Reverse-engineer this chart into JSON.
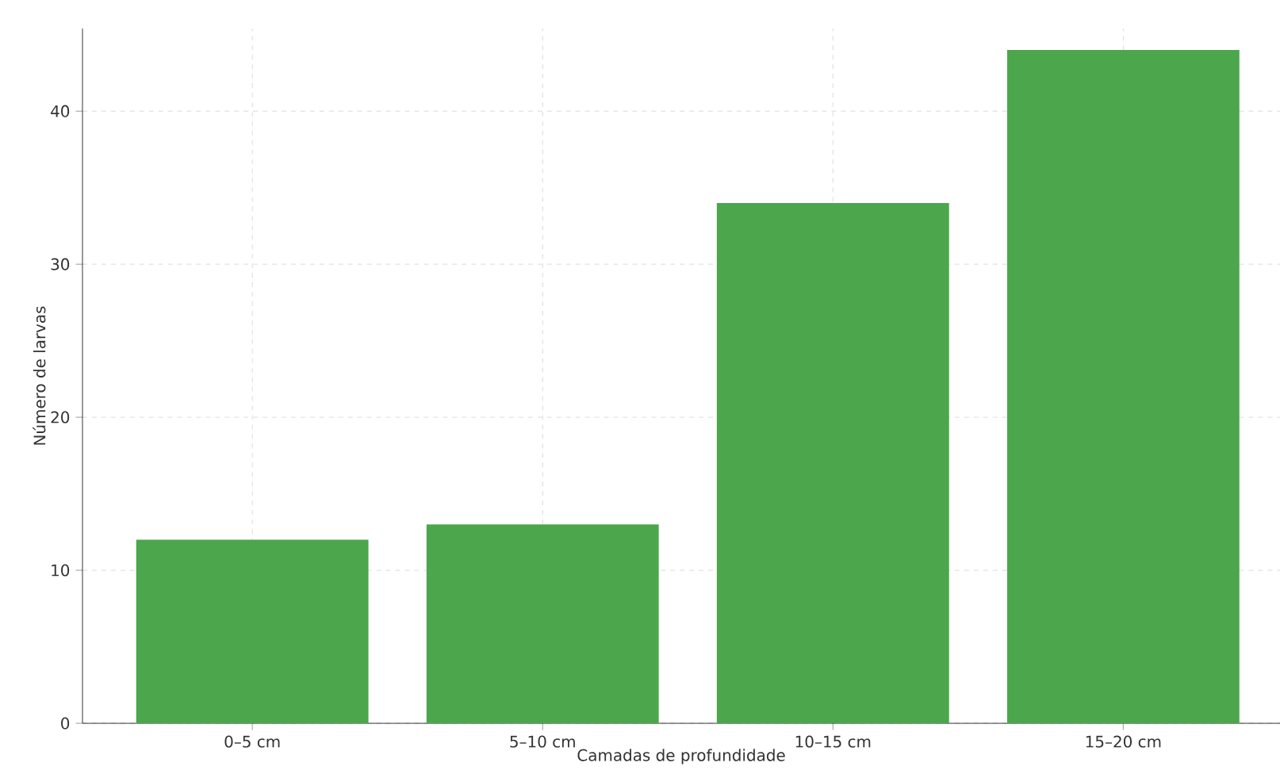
{
  "chart_data": {
    "type": "bar",
    "xlabel": "Camadas de profundidade",
    "ylabel": "Número de larvas",
    "categories": [
      "0–5 cm",
      "5–10 cm",
      "10–15 cm",
      "15–20 cm"
    ],
    "values": [
      12,
      13,
      34,
      44
    ],
    "color": "#4ca64c",
    "ylim": [
      0,
      45.4
    ],
    "yticks": [
      0,
      10,
      20,
      30,
      40
    ],
    "grid": true
  }
}
